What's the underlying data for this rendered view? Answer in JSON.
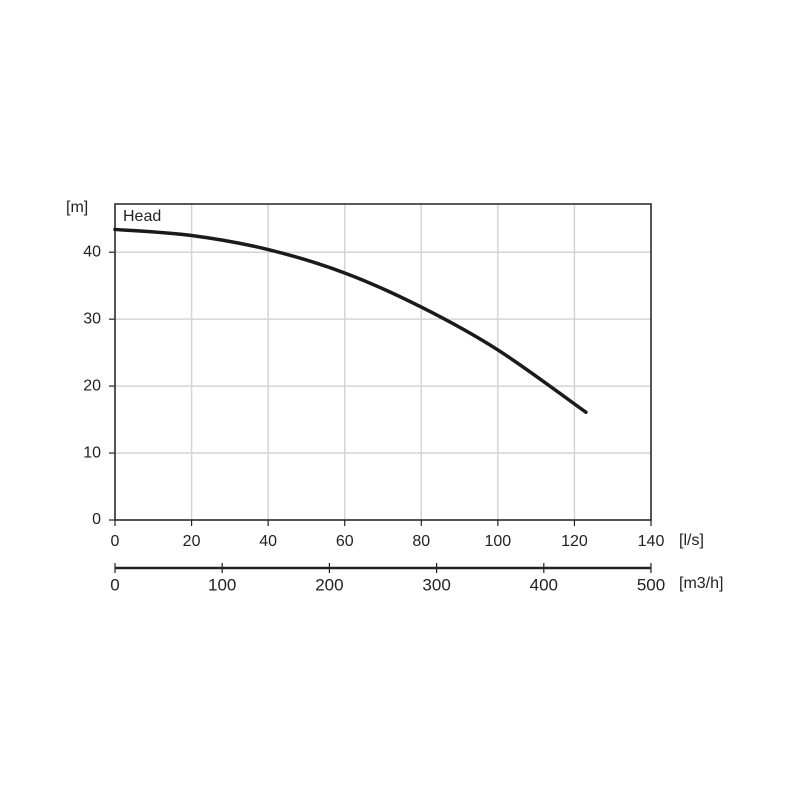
{
  "chart_data": {
    "type": "line",
    "x": [
      0,
      20,
      40,
      60,
      80,
      100,
      123
    ],
    "series": [
      {
        "name": "Head",
        "color": "#1a1a1a",
        "values": [
          43.4,
          42.5,
          40.4,
          36.9,
          31.8,
          25.4,
          16.1
        ]
      }
    ],
    "xlim": [
      0,
      140
    ],
    "xticks": [
      0,
      20,
      40,
      60,
      80,
      100,
      120,
      140
    ],
    "ylim": [
      0,
      47.2
    ],
    "yticks": [
      0,
      10,
      20,
      30,
      40
    ],
    "x_label": "[l/s]",
    "y_label": "[m]",
    "x2lim": [
      0,
      500
    ],
    "x2ticks": [
      0,
      100,
      200,
      300,
      400,
      500
    ],
    "x2_label": "[m3/h]",
    "grid": true
  }
}
